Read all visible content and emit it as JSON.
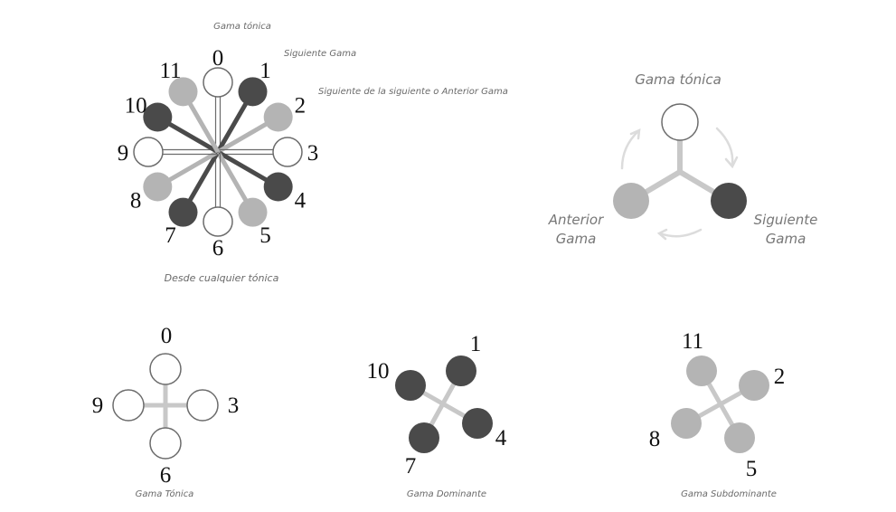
{
  "colors": {
    "white_fill": "#ffffff",
    "light_gray": "#b4b4b4",
    "dark_gray": "#4a4a4a",
    "outline": "#6c6c6c",
    "connector": "#c8c8c8",
    "arrow": "#dcdcdc"
  },
  "wheel": {
    "labels": {
      "top": "Gama tónica",
      "right_upper": "Siguiente Gama",
      "right_middle": "Siguiente de la siguiente o Anterior Gama",
      "bottom": "Desde cualquier tónica"
    },
    "nodes": [
      {
        "num": "0",
        "group": "white"
      },
      {
        "num": "1",
        "group": "dark"
      },
      {
        "num": "2",
        "group": "light"
      },
      {
        "num": "3",
        "group": "white"
      },
      {
        "num": "4",
        "group": "dark"
      },
      {
        "num": "5",
        "group": "light"
      },
      {
        "num": "6",
        "group": "white"
      },
      {
        "num": "7",
        "group": "dark"
      },
      {
        "num": "8",
        "group": "light"
      },
      {
        "num": "9",
        "group": "white"
      },
      {
        "num": "10",
        "group": "dark"
      },
      {
        "num": "11",
        "group": "light"
      }
    ]
  },
  "cycle": {
    "top_label": "Gama tónica",
    "left_label_line1": "Anterior",
    "left_label_line2": "Gama",
    "right_label_line1": "Siguiente",
    "right_label_line2": "Gama"
  },
  "groups": [
    {
      "name": "Gama Tónica",
      "group": "white",
      "numbers": [
        "0",
        "3",
        "6",
        "9"
      ]
    },
    {
      "name": "Gama Dominante",
      "group": "dark",
      "numbers": [
        "1",
        "4",
        "7",
        "10"
      ]
    },
    {
      "name": "Gama Subdominante",
      "group": "light",
      "numbers": [
        "2",
        "5",
        "8",
        "11"
      ]
    }
  ]
}
